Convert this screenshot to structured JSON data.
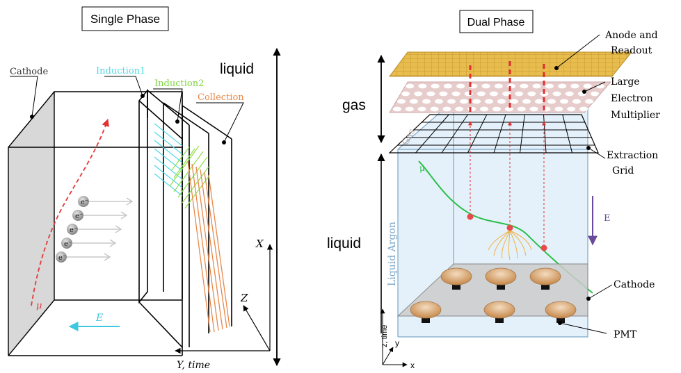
{
  "single_phase": {
    "title": "Single Phase",
    "labels": {
      "cathode": "Cathode",
      "induction1": "Induction1",
      "induction2": "Induction2",
      "collection": "Collection",
      "liquid": "liquid",
      "x_axis": "X",
      "z_axis": "Z",
      "y_axis": "Y, time",
      "efield": "E",
      "muon": "μ",
      "electron": "e⁻"
    },
    "electron_count": 5,
    "colors": {
      "induction1": "#4fd8e6",
      "induction2": "#8ee04a",
      "collection": "#e8884a",
      "muon": "#e03a3a",
      "efield": "#3cc8e0"
    }
  },
  "dual_phase": {
    "title": "Dual Phase",
    "labels": {
      "anode": "Anode and",
      "anode2": "Readout",
      "lem1": "Large",
      "lem2": "Electron",
      "lem3": "Multiplier",
      "grid1": "Extraction",
      "grid2": "Grid",
      "cathode": "Cathode",
      "pmt": "PMT",
      "efield": "E",
      "gas": "gas",
      "liquid": "liquid",
      "gas_side": "Gas",
      "liquid_argon": "Liquid Argon",
      "muon": "μ",
      "axis_z": "z, time",
      "axis_y": "y",
      "axis_x": "x"
    },
    "colors": {
      "anode": "#e3b94a",
      "lem": "#e6c6c6",
      "argon": "#e4f1fa",
      "muon": "#2bbf4a",
      "drift": "#e03030",
      "efield": "#6a4a9a"
    }
  }
}
